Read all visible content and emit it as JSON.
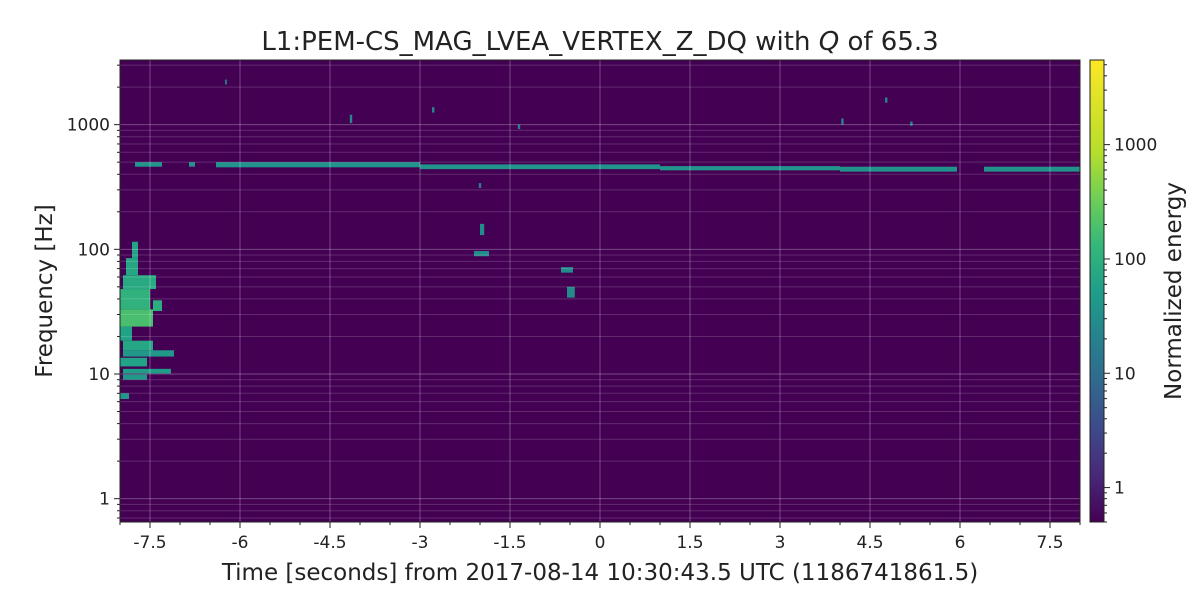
{
  "chart_data": {
    "type": "heatmap",
    "title_prefix": "L1:PEM-CS_MAG_LVEA_VERTEX_Z_DQ with ",
    "title_q": "Q",
    "title_suffix": " of 65.3",
    "xlabel": "Time [seconds] from 2017-08-14 10:30:43.5 UTC (1186741861.5)",
    "ylabel": "Frequency [Hz]",
    "xlim": [
      -8,
      8
    ],
    "ylim": [
      0.65,
      3300
    ],
    "yscale": "log",
    "grid": true,
    "x_ticks": [
      -7.5,
      -6,
      -4.5,
      -3,
      -1.5,
      0,
      1.5,
      3,
      4.5,
      6,
      7.5
    ],
    "x_tick_labels": [
      "-7.5",
      "-6",
      "-4.5",
      "-3",
      "-1.5",
      "0",
      "1.5",
      "3",
      "4.5",
      "6",
      "7.5"
    ],
    "y_ticks": [
      1,
      10,
      100,
      1000
    ],
    "y_tick_labels": [
      "1",
      "10",
      "100",
      "1000"
    ],
    "colorbar": {
      "label": "Normalized energy",
      "scale": "log",
      "range": [
        0.5,
        5500
      ],
      "colormap": "viridis",
      "ticks": [
        1,
        10,
        100,
        1000
      ],
      "tick_labels": [
        "1",
        "10",
        "100",
        "1000"
      ]
    },
    "background_color": "#440154",
    "tiles": [
      {
        "t0": -8.0,
        "t1": -7.85,
        "f0": 6.3,
        "f1": 7.0,
        "energy": 40
      },
      {
        "t0": -7.95,
        "t1": -7.55,
        "f0": 9.0,
        "f1": 9.9,
        "energy": 45
      },
      {
        "t0": -7.95,
        "t1": -7.15,
        "f0": 10.1,
        "f1": 11.0,
        "energy": 50
      },
      {
        "t0": -8.0,
        "t1": -7.55,
        "f0": 11.5,
        "f1": 13.5,
        "energy": 60
      },
      {
        "t0": -7.95,
        "t1": -7.1,
        "f0": 13.8,
        "f1": 15.5,
        "energy": 45
      },
      {
        "t0": -7.95,
        "t1": -7.45,
        "f0": 15.5,
        "f1": 18.5,
        "energy": 70
      },
      {
        "t0": -8.0,
        "t1": -7.8,
        "f0": 18.5,
        "f1": 24.0,
        "energy": 60
      },
      {
        "t0": -8.0,
        "t1": -7.45,
        "f0": 24.0,
        "f1": 33.0,
        "energy": 180
      },
      {
        "t0": -7.45,
        "t1": -7.3,
        "f0": 32.0,
        "f1": 39.0,
        "energy": 90
      },
      {
        "t0": -8.0,
        "t1": -7.5,
        "f0": 33.0,
        "f1": 48.0,
        "energy": 110
      },
      {
        "t0": -7.95,
        "t1": -7.4,
        "f0": 48.0,
        "f1": 62.0,
        "energy": 80
      },
      {
        "t0": -7.9,
        "t1": -7.7,
        "f0": 62.0,
        "f1": 85.0,
        "energy": 70
      },
      {
        "t0": -7.8,
        "t1": -7.7,
        "f0": 85.0,
        "f1": 115.0,
        "energy": 60
      },
      {
        "t0": -7.75,
        "t1": -7.3,
        "f0": 460,
        "f1": 500,
        "energy": 40
      },
      {
        "t0": -6.85,
        "t1": -6.75,
        "f0": 460,
        "f1": 500,
        "energy": 35
      },
      {
        "t0": -6.4,
        "t1": -3.0,
        "f0": 455,
        "f1": 500,
        "energy": 38
      },
      {
        "t0": -3.0,
        "t1": 1.0,
        "f0": 440,
        "f1": 480,
        "energy": 38
      },
      {
        "t0": 1.0,
        "t1": 4.0,
        "f0": 430,
        "f1": 465,
        "energy": 38
      },
      {
        "t0": 4.0,
        "t1": 5.95,
        "f0": 420,
        "f1": 460,
        "energy": 36
      },
      {
        "t0": 6.4,
        "t1": 8.0,
        "f0": 420,
        "f1": 460,
        "energy": 36
      },
      {
        "t0": -6.25,
        "t1": -6.22,
        "f0": 2100,
        "f1": 2300,
        "energy": 20
      },
      {
        "t0": -4.17,
        "t1": -4.13,
        "f0": 1030,
        "f1": 1200,
        "energy": 25
      },
      {
        "t0": -2.8,
        "t1": -2.76,
        "f0": 1250,
        "f1": 1380,
        "energy": 22
      },
      {
        "t0": -1.37,
        "t1": -1.33,
        "f0": 920,
        "f1": 1000,
        "energy": 18
      },
      {
        "t0": -2.02,
        "t1": -1.98,
        "f0": 310,
        "f1": 340,
        "energy": 18
      },
      {
        "t0": -2.0,
        "t1": -1.93,
        "f0": 130,
        "f1": 160,
        "energy": 30
      },
      {
        "t0": -2.1,
        "t1": -1.85,
        "f0": 88,
        "f1": 97,
        "energy": 28
      },
      {
        "t0": -0.65,
        "t1": -0.45,
        "f0": 65,
        "f1": 72,
        "energy": 28
      },
      {
        "t0": -0.55,
        "t1": -0.42,
        "f0": 41,
        "f1": 50,
        "energy": 28
      },
      {
        "t0": 4.02,
        "t1": 4.06,
        "f0": 1000,
        "f1": 1120,
        "energy": 22
      },
      {
        "t0": 4.75,
        "t1": 4.79,
        "f0": 1500,
        "f1": 1650,
        "energy": 22
      },
      {
        "t0": 5.17,
        "t1": 5.21,
        "f0": 980,
        "f1": 1060,
        "energy": 20
      }
    ]
  }
}
